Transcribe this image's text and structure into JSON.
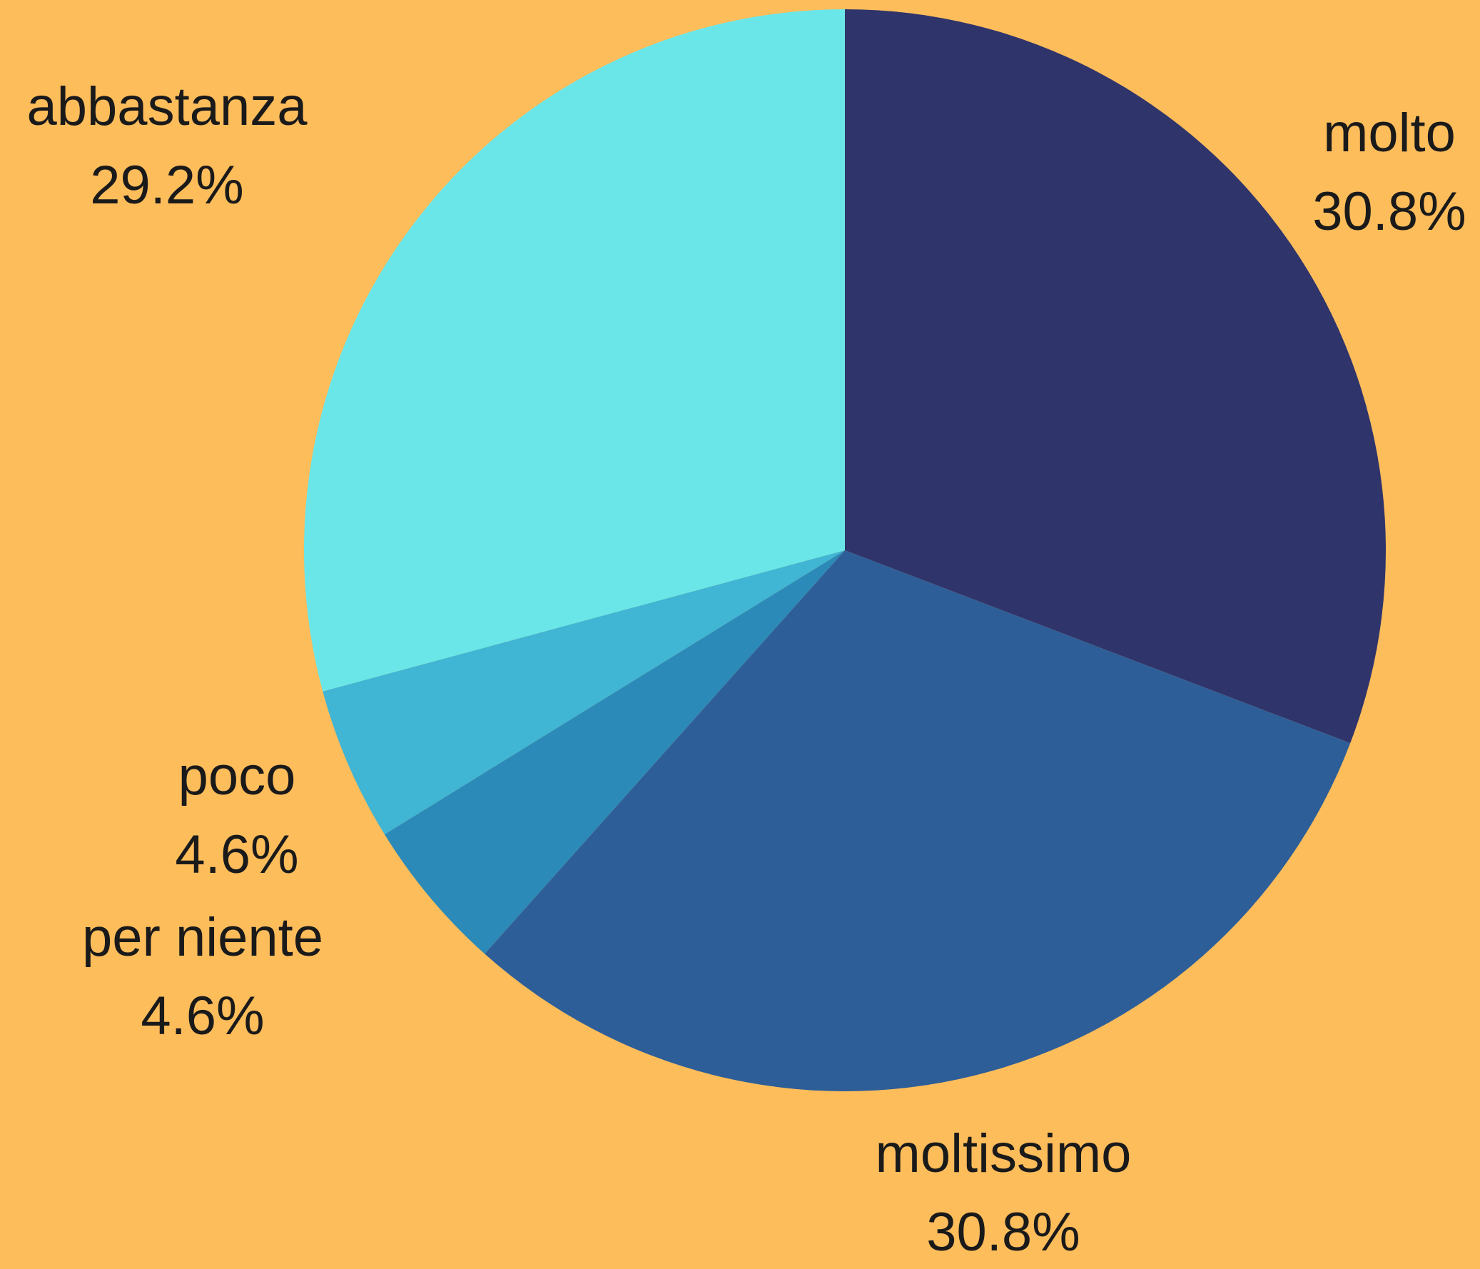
{
  "chart_data": {
    "type": "pie",
    "categories": [
      "molto",
      "moltissimo",
      "per niente",
      "poco",
      "abbastanza"
    ],
    "values": [
      30.8,
      30.8,
      4.6,
      4.6,
      29.2
    ],
    "value_labels": [
      "30.8%",
      "30.8%",
      "4.6%",
      "4.6%",
      "29.2%"
    ],
    "colors": [
      "#2f346b",
      "#2e5e98",
      "#2c8ab8",
      "#40b5d4",
      "#6ae6e8"
    ],
    "background": "#febd5b"
  }
}
